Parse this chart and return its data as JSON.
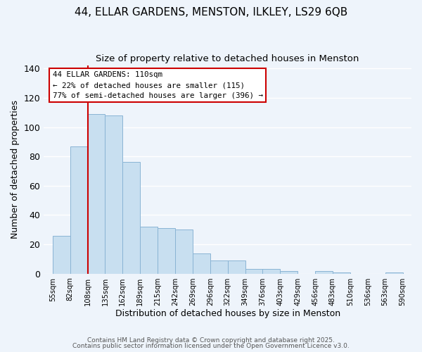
{
  "title_line1": "44, ELLAR GARDENS, MENSTON, ILKLEY, LS29 6QB",
  "title_line2": "Size of property relative to detached houses in Menston",
  "xlabel": "Distribution of detached houses by size in Menston",
  "ylabel": "Number of detached properties",
  "tick_labels": [
    "55sqm",
    "82sqm",
    "108sqm",
    "135sqm",
    "162sqm",
    "189sqm",
    "215sqm",
    "242sqm",
    "269sqm",
    "296sqm",
    "322sqm",
    "349sqm",
    "376sqm",
    "403sqm",
    "429sqm",
    "456sqm",
    "483sqm",
    "510sqm",
    "536sqm",
    "563sqm",
    "590sqm"
  ],
  "bar_heights": [
    26,
    87,
    109,
    108,
    76,
    32,
    31,
    30,
    14,
    9,
    9,
    3,
    3,
    2,
    0,
    2,
    1,
    0,
    0,
    1,
    0
  ],
  "bar_color": "#c8dff0",
  "bar_edge_color": "#8ab4d4",
  "red_line_index": 2,
  "annotation_title": "44 ELLAR GARDENS: 110sqm",
  "annotation_line2": "← 22% of detached houses are smaller (115)",
  "annotation_line3": "77% of semi-detached houses are larger (396) →",
  "annotation_box_facecolor": "#ffffff",
  "annotation_box_edgecolor": "#cc0000",
  "red_line_color": "#cc0000",
  "ylim": [
    0,
    142
  ],
  "yticks": [
    0,
    20,
    40,
    60,
    80,
    100,
    120,
    140
  ],
  "footer_line1": "Contains HM Land Registry data © Crown copyright and database right 2025.",
  "footer_line2": "Contains public sector information licensed under the Open Government Licence v3.0.",
  "background_color": "#eef4fb"
}
